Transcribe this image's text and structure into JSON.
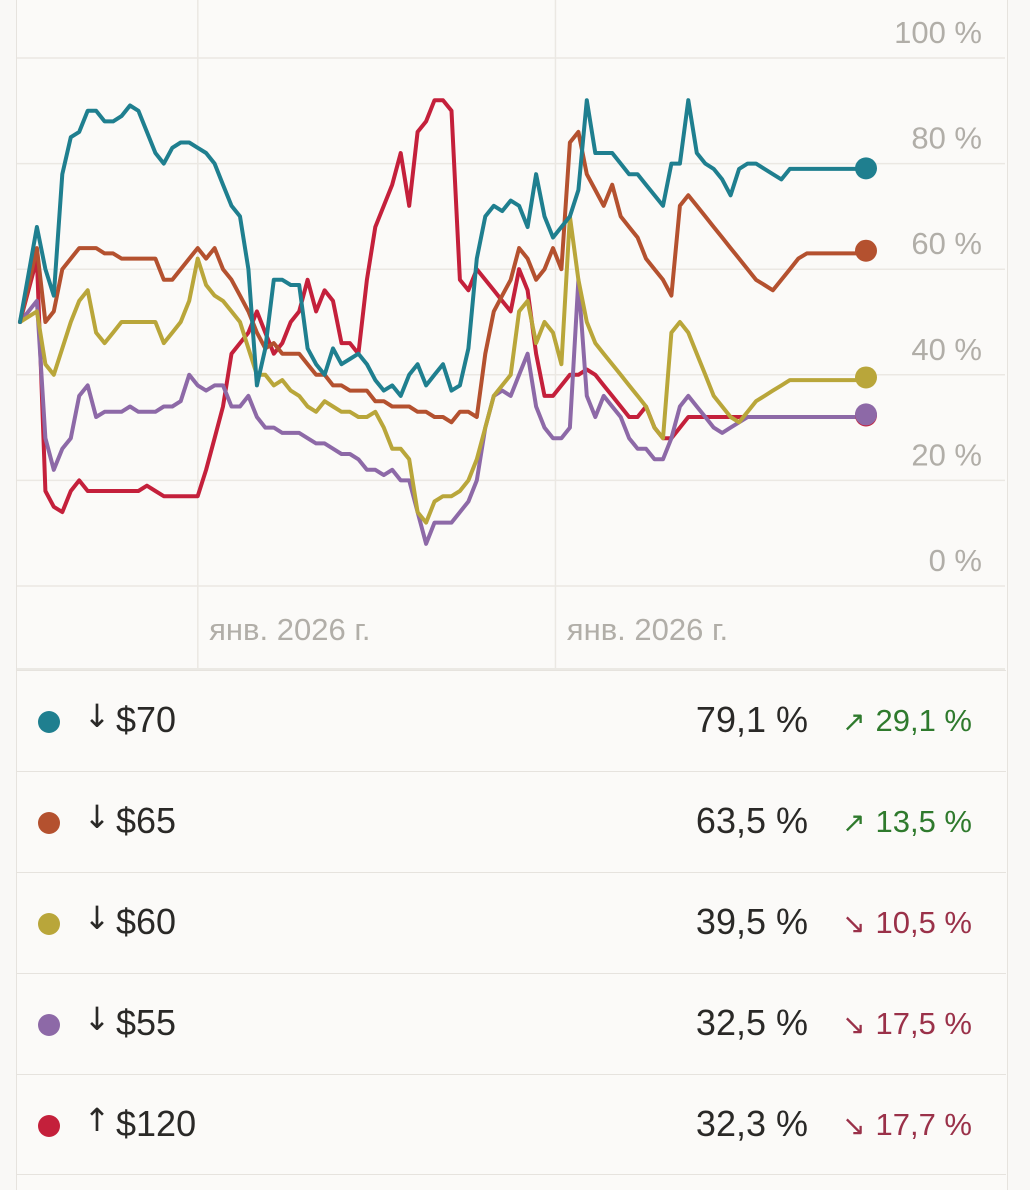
{
  "chart_data": {
    "type": "line",
    "ylim": [
      0,
      100
    ],
    "y_ticks": [
      "100 %",
      "80 %",
      "60 %",
      "40 %",
      "20 %",
      "0 %"
    ],
    "y_tick_values": [
      100,
      80,
      60,
      40,
      20,
      0
    ],
    "x_ticks": [
      "янв. 2026 г.",
      "янв. 2026 г."
    ],
    "x_tick_fractions": [
      0.183,
      0.545
    ],
    "x_range": [
      0,
      100
    ],
    "grid": true,
    "series": [
      {
        "name": "$70",
        "color": "#1f7f8f",
        "x": [
          0,
          2,
          3,
          4,
          5,
          6,
          7,
          8,
          9,
          10,
          11,
          12,
          13,
          14,
          15,
          16,
          17,
          18,
          19,
          20,
          21,
          22,
          23,
          24,
          25,
          26,
          27,
          28,
          29,
          30,
          31,
          32,
          33,
          34,
          35,
          36,
          37,
          38,
          39,
          40,
          41,
          42,
          43,
          44,
          45,
          46,
          47,
          48,
          49,
          50,
          51,
          52,
          53,
          54,
          55,
          56,
          57,
          58,
          59,
          60,
          61,
          62,
          63,
          64,
          65,
          66,
          67,
          68,
          69,
          70,
          71,
          72,
          73,
          74,
          75,
          76,
          77,
          78,
          79,
          80,
          81,
          82,
          83,
          84,
          85,
          86,
          87,
          88,
          89,
          90,
          91,
          92,
          93,
          94,
          95,
          96,
          97,
          98,
          99,
          100
        ],
        "values": [
          50,
          68,
          60,
          55,
          78,
          85,
          86,
          90,
          90,
          88,
          88,
          89,
          91,
          90,
          86,
          82,
          80,
          83,
          84,
          84,
          83,
          82,
          80,
          76,
          72,
          70,
          60,
          38,
          45,
          58,
          58,
          57,
          57,
          45,
          42,
          40,
          45,
          42,
          43,
          44,
          42,
          39,
          37,
          38,
          36,
          40,
          42,
          38,
          40,
          42,
          37,
          38,
          45,
          62,
          70,
          72,
          71,
          73,
          72,
          68,
          78,
          70,
          66,
          68,
          70,
          75,
          92,
          82,
          82,
          82,
          80,
          78,
          78,
          76,
          74,
          72,
          80,
          80,
          92,
          82,
          80,
          79,
          77,
          74,
          79,
          80,
          80,
          79,
          78,
          77,
          79,
          79,
          79,
          79,
          79,
          79,
          79,
          79,
          79,
          79.1
        ]
      },
      {
        "name": "$65",
        "color": "#b4512f",
        "x": [
          0,
          2,
          3,
          4,
          5,
          6,
          7,
          8,
          9,
          10,
          11,
          12,
          13,
          14,
          15,
          16,
          17,
          18,
          19,
          20,
          21,
          22,
          23,
          24,
          25,
          26,
          27,
          28,
          29,
          30,
          31,
          32,
          33,
          34,
          35,
          36,
          37,
          38,
          39,
          40,
          41,
          42,
          43,
          44,
          45,
          46,
          47,
          48,
          49,
          50,
          51,
          52,
          53,
          54,
          55,
          56,
          57,
          58,
          59,
          60,
          61,
          62,
          63,
          64,
          65,
          66,
          67,
          68,
          69,
          70,
          71,
          72,
          73,
          74,
          75,
          76,
          77,
          78,
          79,
          80,
          81,
          82,
          83,
          84,
          85,
          86,
          87,
          88,
          89,
          90,
          91,
          92,
          93,
          94,
          95,
          96,
          97,
          98,
          99,
          100
        ],
        "values": [
          50,
          64,
          50,
          52,
          60,
          62,
          64,
          64,
          64,
          63,
          63,
          62,
          62,
          62,
          62,
          62,
          58,
          58,
          60,
          62,
          64,
          62,
          64,
          60,
          58,
          55,
          52,
          48,
          45,
          46,
          44,
          44,
          44,
          42,
          40,
          40,
          38,
          38,
          37,
          37,
          37,
          35,
          35,
          34,
          34,
          34,
          33,
          33,
          32,
          32,
          31,
          33,
          33,
          32,
          44,
          52,
          55,
          58,
          64,
          62,
          58,
          60,
          64,
          60,
          84,
          86,
          78,
          75,
          72,
          76,
          70,
          68,
          66,
          62,
          60,
          58,
          55,
          72,
          74,
          72,
          70,
          68,
          66,
          64,
          62,
          60,
          58,
          57,
          56,
          58,
          60,
          62,
          63,
          63,
          63,
          63,
          63,
          63,
          63,
          63.5
        ]
      },
      {
        "name": "$60",
        "color": "#b9a63a",
        "x": [
          0,
          2,
          3,
          4,
          5,
          6,
          7,
          8,
          9,
          10,
          11,
          12,
          13,
          14,
          15,
          16,
          17,
          18,
          19,
          20,
          21,
          22,
          23,
          24,
          25,
          26,
          27,
          28,
          29,
          30,
          31,
          32,
          33,
          34,
          35,
          36,
          37,
          38,
          39,
          40,
          41,
          42,
          43,
          44,
          45,
          46,
          47,
          48,
          49,
          50,
          51,
          52,
          53,
          54,
          55,
          56,
          57,
          58,
          59,
          60,
          61,
          62,
          63,
          64,
          65,
          66,
          67,
          68,
          69,
          70,
          71,
          72,
          73,
          74,
          75,
          76,
          77,
          78,
          79,
          80,
          81,
          82,
          83,
          84,
          85,
          86,
          87,
          88,
          89,
          90,
          91,
          92,
          93,
          94,
          95,
          96,
          97,
          98,
          99,
          100
        ],
        "values": [
          50,
          52,
          42,
          40,
          45,
          50,
          54,
          56,
          48,
          46,
          48,
          50,
          50,
          50,
          50,
          50,
          46,
          48,
          50,
          54,
          62,
          57,
          55,
          54,
          52,
          50,
          45,
          40,
          40,
          38,
          39,
          37,
          36,
          34,
          33,
          35,
          34,
          33,
          33,
          32,
          32,
          33,
          30,
          26,
          26,
          24,
          14,
          12,
          16,
          17,
          17,
          18,
          20,
          24,
          30,
          36,
          38,
          40,
          52,
          54,
          46,
          50,
          48,
          42,
          70,
          58,
          50,
          46,
          44,
          42,
          40,
          38,
          36,
          34,
          30,
          28,
          48,
          50,
          48,
          44,
          40,
          36,
          34,
          32,
          31,
          33,
          35,
          36,
          37,
          38,
          39,
          39,
          39,
          39,
          39,
          39,
          39,
          39,
          39,
          39.5
        ]
      },
      {
        "name": "$55",
        "color": "#8d69a7",
        "x": [
          0,
          2,
          3,
          4,
          5,
          6,
          7,
          8,
          9,
          10,
          11,
          12,
          13,
          14,
          15,
          16,
          17,
          18,
          19,
          20,
          21,
          22,
          23,
          24,
          25,
          26,
          27,
          28,
          29,
          30,
          31,
          32,
          33,
          34,
          35,
          36,
          37,
          38,
          39,
          40,
          41,
          42,
          43,
          44,
          45,
          46,
          47,
          48,
          49,
          50,
          51,
          52,
          53,
          54,
          55,
          56,
          57,
          58,
          59,
          60,
          61,
          62,
          63,
          64,
          65,
          66,
          67,
          68,
          69,
          70,
          71,
          72,
          73,
          74,
          75,
          76,
          77,
          78,
          79,
          80,
          81,
          82,
          83,
          84,
          85,
          86,
          87,
          88,
          89,
          90,
          91,
          92,
          93,
          94,
          95,
          96,
          97,
          98,
          99,
          100
        ],
        "values": [
          50,
          54,
          28,
          22,
          26,
          28,
          36,
          38,
          32,
          33,
          33,
          33,
          34,
          33,
          33,
          33,
          34,
          34,
          35,
          40,
          38,
          37,
          38,
          38,
          34,
          34,
          36,
          32,
          30,
          30,
          29,
          29,
          29,
          28,
          27,
          27,
          26,
          25,
          25,
          24,
          22,
          22,
          21,
          22,
          20,
          20,
          14,
          8,
          12,
          12,
          12,
          14,
          16,
          20,
          30,
          36,
          37,
          36,
          40,
          44,
          34,
          30,
          28,
          28,
          30,
          58,
          36,
          32,
          36,
          34,
          32,
          28,
          26,
          26,
          24,
          24,
          28,
          34,
          36,
          34,
          32,
          30,
          29,
          30,
          31,
          32,
          32,
          32,
          32,
          32,
          32,
          32,
          32,
          32,
          32,
          32,
          32,
          32,
          32,
          32.5
        ]
      },
      {
        "name": "$120",
        "color": "#c4203b",
        "x": [
          0,
          2,
          3,
          4,
          5,
          6,
          7,
          8,
          9,
          10,
          11,
          12,
          13,
          14,
          15,
          16,
          17,
          18,
          19,
          20,
          21,
          22,
          23,
          24,
          25,
          26,
          27,
          28,
          29,
          30,
          31,
          32,
          33,
          34,
          35,
          36,
          37,
          38,
          39,
          40,
          41,
          42,
          43,
          44,
          45,
          46,
          47,
          48,
          49,
          50,
          51,
          52,
          53,
          54,
          55,
          56,
          57,
          58,
          59,
          60,
          61,
          62,
          63,
          64,
          65,
          66,
          67,
          68,
          69,
          70,
          71,
          72,
          73,
          74,
          75,
          76,
          77,
          78,
          79,
          80,
          81,
          82,
          83,
          84,
          85,
          86,
          87,
          88,
          89,
          90,
          91,
          92,
          93,
          94,
          95,
          96,
          97,
          98,
          99,
          100
        ],
        "values": [
          50,
          62,
          18,
          15,
          14,
          18,
          20,
          18,
          18,
          18,
          18,
          18,
          18,
          18,
          19,
          18,
          17,
          17,
          17,
          17,
          17,
          22,
          28,
          34,
          44,
          46,
          48,
          52,
          48,
          44,
          46,
          50,
          52,
          58,
          52,
          56,
          54,
          46,
          46,
          44,
          58,
          68,
          72,
          76,
          82,
          72,
          86,
          88,
          92,
          92,
          90,
          58,
          56,
          60,
          58,
          56,
          54,
          52,
          60,
          56,
          44,
          36,
          36,
          38,
          40,
          40,
          41,
          40,
          38,
          36,
          34,
          32,
          32,
          34,
          30,
          28,
          28,
          30,
          32,
          32,
          32,
          32,
          32,
          32,
          32,
          32,
          32,
          32,
          32,
          32,
          32,
          32,
          32,
          32,
          32,
          32,
          32,
          32,
          32,
          32.3
        ]
      }
    ]
  },
  "legend": [
    {
      "direction": "↓",
      "name": "$70",
      "value": "79,1 %",
      "change_arrow": "↗",
      "change": "29,1 %",
      "trend": "up",
      "color": "#1f7f8f"
    },
    {
      "direction": "↓",
      "name": "$65",
      "value": "63,5 %",
      "change_arrow": "↗",
      "change": "13,5 %",
      "trend": "up",
      "color": "#b4512f"
    },
    {
      "direction": "↓",
      "name": "$60",
      "value": "39,5 %",
      "change_arrow": "↘",
      "change": "10,5 %",
      "trend": "down",
      "color": "#b9a63a"
    },
    {
      "direction": "↓",
      "name": "$55",
      "value": "32,5 %",
      "change_arrow": "↘",
      "change": "17,5 %",
      "trend": "down",
      "color": "#8d69a7"
    },
    {
      "direction": "↑",
      "name": "$120",
      "value": "32,3 %",
      "change_arrow": "↘",
      "change": "17,7 %",
      "trend": "down",
      "color": "#c4203b"
    }
  ]
}
